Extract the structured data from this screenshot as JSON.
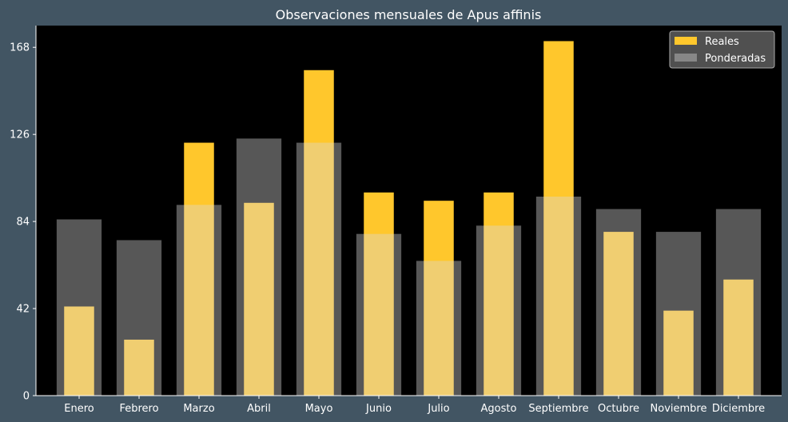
{
  "chart_data": {
    "type": "bar",
    "title": "Observaciones mensuales de Apus affinis",
    "xlabel": "",
    "ylabel": "",
    "categories": [
      "Enero",
      "Febrero",
      "Marzo",
      "Abril",
      "Mayo",
      "Junio",
      "Julio",
      "Agosto",
      "Septiembre",
      "Octubre",
      "Noviembre",
      "Diciembre"
    ],
    "series": [
      {
        "name": "Reales",
        "values": [
          43,
          27,
          122,
          93,
          157,
          98,
          94,
          98,
          171,
          79,
          41,
          56
        ],
        "color": "#ffc72c"
      },
      {
        "name": "Ponderadas",
        "values": [
          85,
          75,
          92,
          124,
          122,
          78,
          65,
          82,
          96,
          90,
          79,
          90
        ],
        "color": "#d9d9d9"
      }
    ],
    "ylim": [
      0,
      178.5
    ],
    "yticks": [
      0,
      42,
      84,
      126,
      168
    ],
    "grid": false,
    "legend_position": "top-right",
    "colors": {
      "figure_background": "#425563",
      "plot_background": "#000000",
      "text": "#ffffff",
      "legend_background": "#595959",
      "legend_border": "#aaaaaa"
    }
  }
}
